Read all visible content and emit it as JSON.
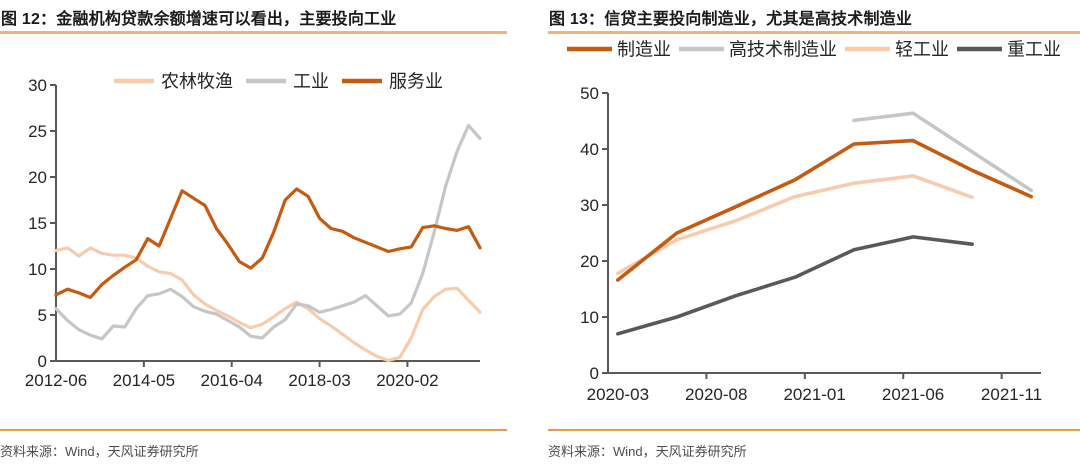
{
  "page": {
    "background": "#ffffff"
  },
  "colors": {
    "title_text": "#1a1a1a",
    "title_underline": "#F4B183",
    "source_divider": "#E89B4D",
    "source_text": "#4d4d4d",
    "axis_line": "#595959",
    "tick_text": "#262626",
    "series_peach": "#F8CBAD",
    "series_light_gray": "#C6C6C6",
    "series_dark_orange": "#C55A11",
    "series_dark_gray": "#595959"
  },
  "figures": [
    {
      "label": "图 12",
      "title": "图 12：金融机构贷款余额增速可以看出，主要投向工业",
      "source": "资料来源：Wind，天风证券研究所"
    },
    {
      "label": "图 13",
      "title": "图 13：信贷主要投向制造业，尤其是高技术制造业",
      "source": "资料来源：Wind，天风证券研究所"
    }
  ],
  "chart_data": [
    {
      "type": "line",
      "title": "图 12：金融机构贷款余额增速可以看出，主要投向工业",
      "xlabel": "",
      "ylabel": "",
      "x_start": "2012-06",
      "x_end": "2021-09",
      "x_step_months": 3,
      "x_total_months": 111,
      "category_offset": false,
      "xticks": [
        {
          "label": "2012-06",
          "month": 0
        },
        {
          "label": "2014-05",
          "month": 23
        },
        {
          "label": "2016-04",
          "month": 46
        },
        {
          "label": "2018-03",
          "month": 69
        },
        {
          "label": "2020-02",
          "month": 92
        }
      ],
      "ylim": [
        0,
        30
      ],
      "yticks": [
        0,
        5,
        10,
        15,
        20,
        25,
        30
      ],
      "grid": false,
      "legend_position": "top",
      "series": [
        {
          "name": "农林牧渔",
          "color": "#F8CBAD",
          "values": [
            12.0,
            12.3,
            11.4,
            12.3,
            11.7,
            11.5,
            11.5,
            11.2,
            10.3,
            9.7,
            9.5,
            8.8,
            7.2,
            6.2,
            5.5,
            4.9,
            4.2,
            3.6,
            4.0,
            4.8,
            5.7,
            6.4,
            5.7,
            4.6,
            3.8,
            2.9,
            2.0,
            1.2,
            0.5,
            0.05,
            0.4,
            2.5,
            5.6,
            7.0,
            7.8,
            7.9,
            6.6,
            5.3
          ]
        },
        {
          "name": "工业",
          "color": "#C6C6C6",
          "values": [
            5.7,
            4.4,
            3.4,
            2.8,
            2.4,
            3.8,
            3.7,
            5.7,
            7.1,
            7.3,
            7.8,
            7.0,
            5.9,
            5.4,
            5.1,
            4.4,
            3.7,
            2.7,
            2.5,
            3.7,
            4.5,
            6.2,
            6.0,
            5.3,
            5.6,
            6.0,
            6.4,
            7.1,
            6.0,
            4.9,
            5.1,
            6.3,
            9.5,
            14.0,
            19.0,
            22.8,
            25.6,
            24.2
          ]
        },
        {
          "name": "服务业",
          "color": "#C55A11",
          "values": [
            7.2,
            7.8,
            7.4,
            6.9,
            8.3,
            9.3,
            10.2,
            11.0,
            13.3,
            12.5,
            15.5,
            18.5,
            17.7,
            16.9,
            14.4,
            12.7,
            10.8,
            10.1,
            11.2,
            14.0,
            17.5,
            18.7,
            17.9,
            15.5,
            14.4,
            14.1,
            13.4,
            12.9,
            12.4,
            11.9,
            12.2,
            12.4,
            14.5,
            14.7,
            14.4,
            14.2,
            14.6,
            12.3
          ]
        }
      ]
    },
    {
      "type": "line",
      "title": "图 13：信贷主要投向制造业，尤其是高技术制造业",
      "xlabel": "",
      "ylabel": "",
      "x_start": "2020-03",
      "x_end": "2021-12",
      "x_total_months": 22,
      "category_offset": true,
      "xticks": [
        {
          "label": "2020-03",
          "month": 0
        },
        {
          "label": "2020-08",
          "month": 5
        },
        {
          "label": "2021-01",
          "month": 10
        },
        {
          "label": "2021-06",
          "month": 15
        },
        {
          "label": "2021-11",
          "month": 20
        }
      ],
      "ylim": [
        0,
        50
      ],
      "yticks": [
        0,
        10,
        20,
        30,
        40,
        50
      ],
      "grid": false,
      "legend_position": "top",
      "series": [
        {
          "name": "制造业",
          "color": "#C55A11",
          "months": [
            0,
            3,
            6,
            9,
            12,
            15,
            18,
            21
          ],
          "values": [
            16.6,
            25.0,
            29.7,
            34.5,
            40.9,
            41.5,
            36.2,
            31.5
          ]
        },
        {
          "name": "高技术制造业",
          "color": "#C6C6C6",
          "months": [
            12,
            15,
            21
          ],
          "values": [
            45.1,
            46.4,
            32.6
          ]
        },
        {
          "name": "轻工业",
          "color": "#F8CBAD",
          "months": [
            0,
            3,
            6,
            9,
            12,
            15,
            18
          ],
          "values": [
            17.8,
            23.8,
            27.2,
            31.5,
            33.9,
            35.2,
            31.4
          ]
        },
        {
          "name": "重工业",
          "color": "#595959",
          "months": [
            0,
            3,
            6,
            9,
            12,
            15,
            18
          ],
          "values": [
            7.0,
            10.0,
            13.8,
            17.1,
            22.0,
            24.3,
            23.0
          ]
        }
      ]
    }
  ]
}
